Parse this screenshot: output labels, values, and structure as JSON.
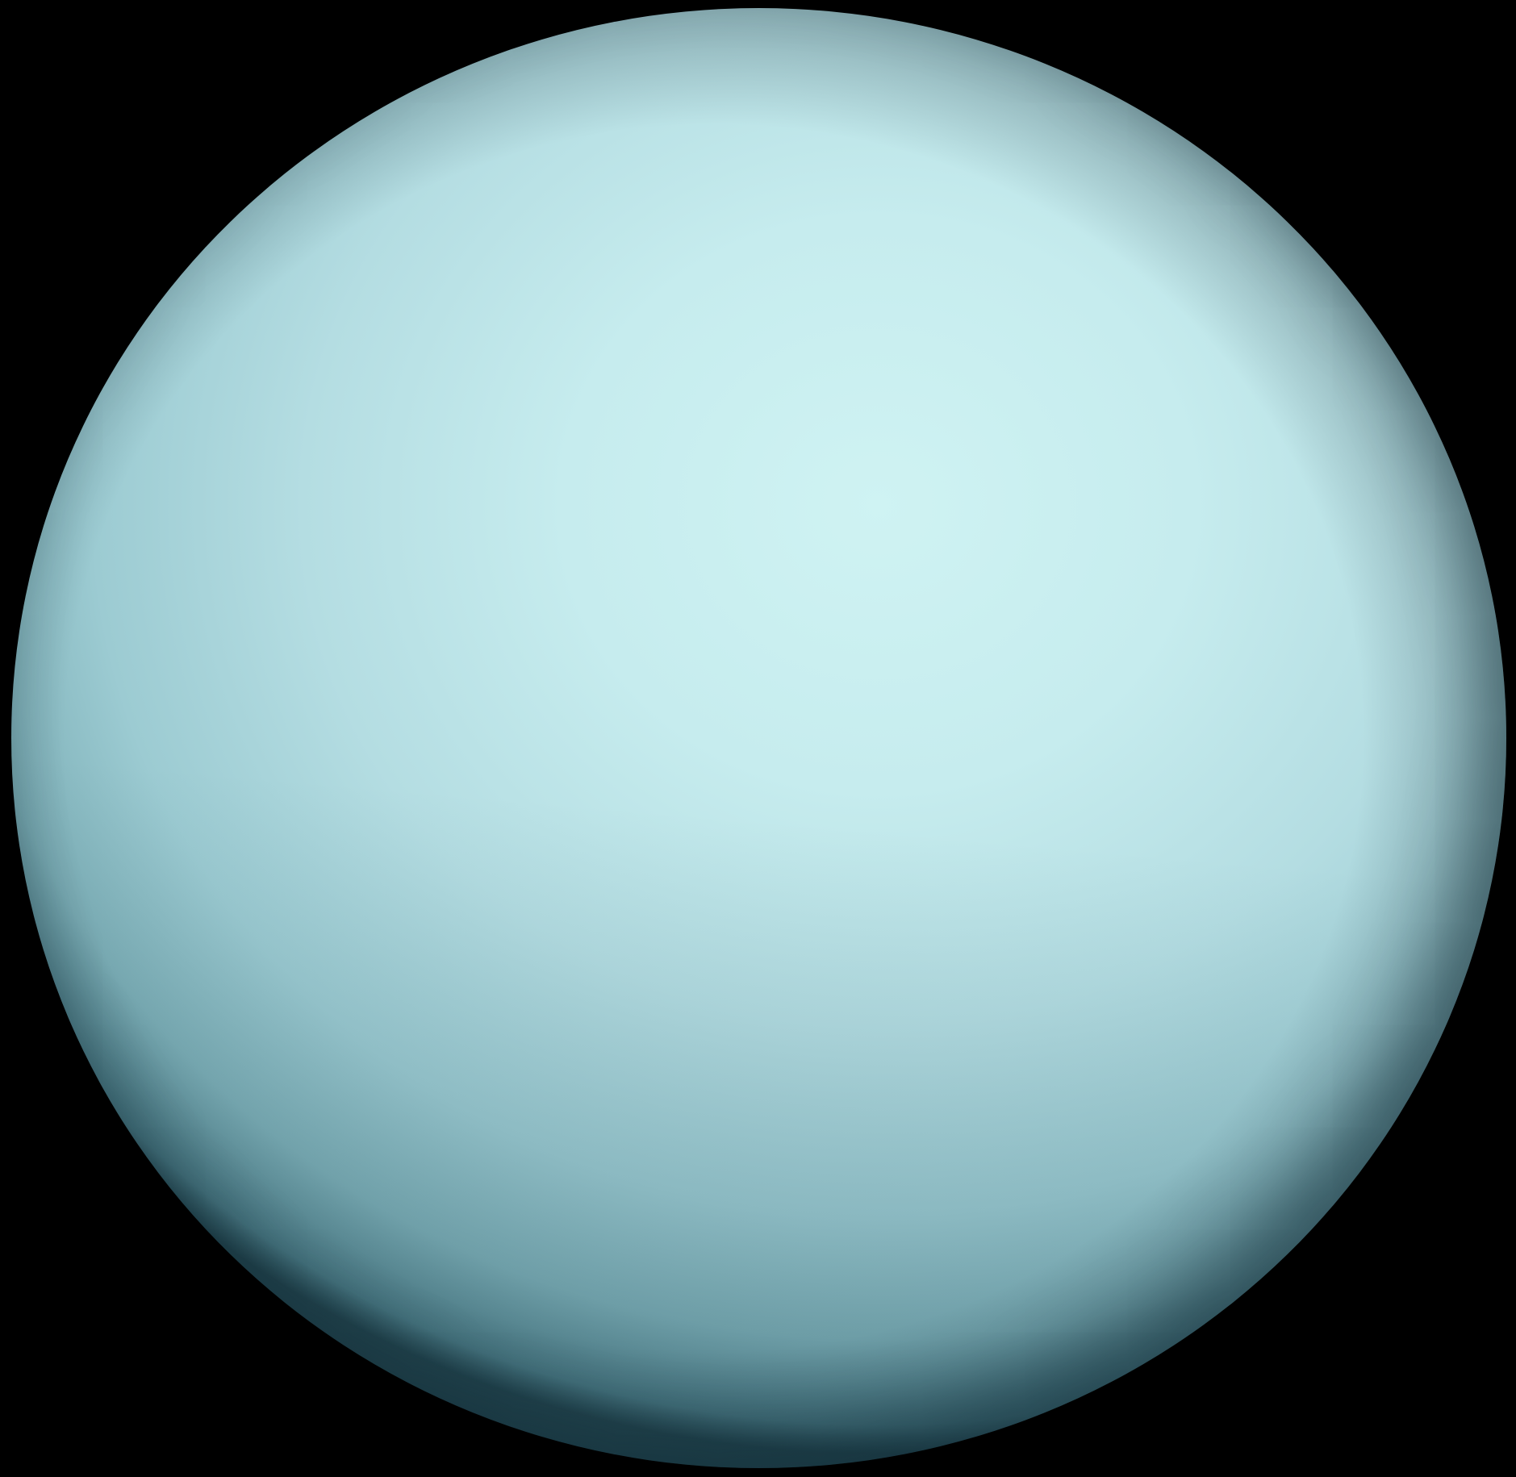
{
  "scene": {
    "subject": "planet",
    "background_color": "#000000",
    "planet_colors": {
      "highlight": "#cff3f3",
      "body": "#b4dde2",
      "shadow": "#4f7f89",
      "limb": "#23434b"
    }
  }
}
